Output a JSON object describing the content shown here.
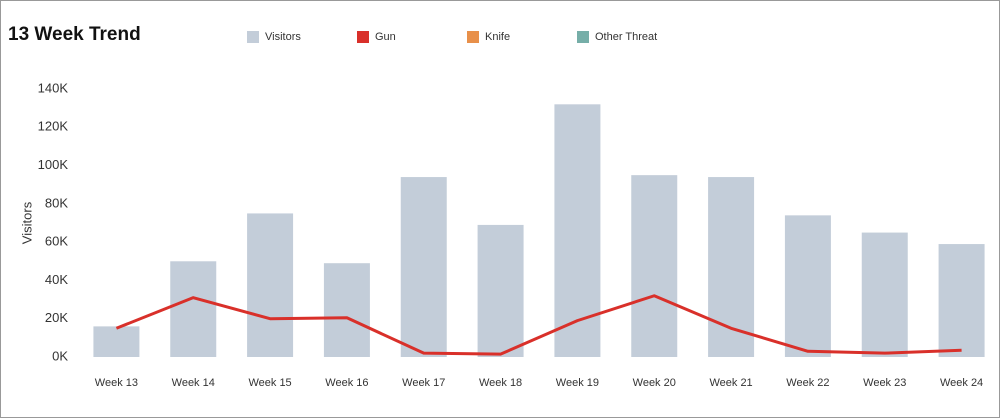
{
  "chart_data": {
    "type": "bar-line",
    "title": "13 Week Trend",
    "y_label": "Visitors",
    "categories": [
      "Week 13",
      "Week 14",
      "Week 15",
      "Week 16",
      "Week 17",
      "Week 18",
      "Week 19",
      "Week 20",
      "Week 21",
      "Week 22",
      "Week 23",
      "Week 24"
    ],
    "series": [
      {
        "name": "Visitors",
        "color": "#c3cdd9",
        "kind": "bar",
        "values": [
          16000,
          50000,
          75000,
          49000,
          94000,
          69000,
          132000,
          95000,
          94000,
          74000,
          65000,
          59000
        ]
      },
      {
        "name": "Gun",
        "color": "#d9302a",
        "kind": "line",
        "values": [
          15000,
          31000,
          20000,
          20500,
          2000,
          1500,
          19000,
          32000,
          15000,
          3000,
          2000,
          3500
        ]
      },
      {
        "name": "Knife",
        "color": "#e8904a",
        "kind": "line",
        "values": [
          null,
          null,
          null,
          null,
          null,
          null,
          null,
          null,
          null,
          null,
          null,
          null
        ]
      },
      {
        "name": "Other Threat",
        "color": "#76aea8",
        "kind": "line",
        "values": [
          null,
          null,
          null,
          null,
          null,
          null,
          null,
          null,
          null,
          null,
          null,
          null
        ]
      }
    ],
    "ylim": [
      0,
      140000
    ],
    "yticks": [
      {
        "value": 0,
        "label": "0K"
      },
      {
        "value": 20000,
        "label": "20K"
      },
      {
        "value": 40000,
        "label": "40K"
      },
      {
        "value": 60000,
        "label": "60K"
      },
      {
        "value": 80000,
        "label": "80K"
      },
      {
        "value": 100000,
        "label": "100K"
      },
      {
        "value": 120000,
        "label": "120K"
      },
      {
        "value": 140000,
        "label": "140K"
      }
    ]
  }
}
